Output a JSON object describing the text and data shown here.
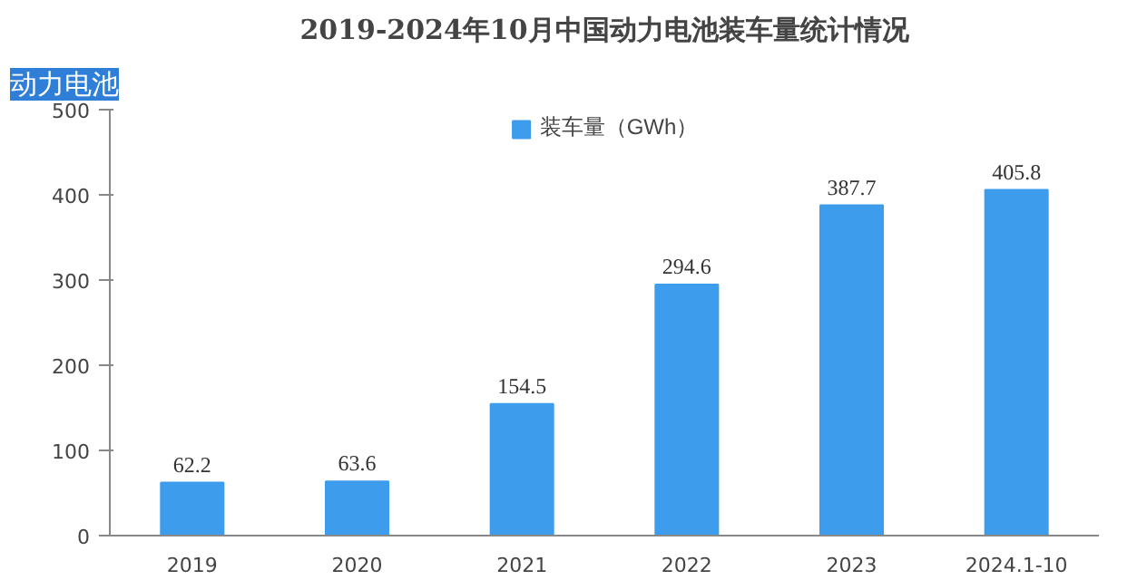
{
  "chart_data": {
    "type": "bar",
    "title": "2019-2024年10月中国动力电池装车量统计情况",
    "categories": [
      "2019",
      "2020",
      "2021",
      "2022",
      "2023",
      "2024.1-10"
    ],
    "series": [
      {
        "name": "装车量（GWh）",
        "color": "#3e9cec",
        "values": [
          62.2,
          63.6,
          154.5,
          294.6,
          387.7,
          405.8
        ]
      }
    ],
    "ylim": [
      0,
      500
    ],
    "yticks": [
      0,
      100,
      200,
      300,
      400,
      500
    ],
    "data_labels": true,
    "legend": "top",
    "grid": false,
    "annotations": [
      "动力电池"
    ]
  }
}
